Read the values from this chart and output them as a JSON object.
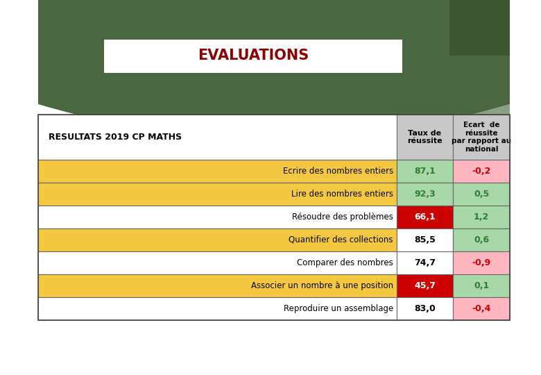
{
  "title": "EVALUATIONS",
  "subtitle": "RESULTATS 2019 CP MATHS",
  "col_headers": [
    "Taux de\nréussite",
    "Ecart  de\nréussite\npar rapport au\nnational"
  ],
  "rows": [
    {
      "label": "Ecrire des nombres entiers",
      "taux": "87,1",
      "ecart": "-0,2",
      "row_bg": "#F5C842",
      "taux_bg": "#A8D8A8",
      "ecart_bg": "#FFB6C1",
      "taux_color": "#2E7D32",
      "ecart_color": "#CC0000"
    },
    {
      "label": "Lire des nombres entiers",
      "taux": "92,3",
      "ecart": "0,5",
      "row_bg": "#F5C842",
      "taux_bg": "#A8D8A8",
      "ecart_bg": "#A8D8A8",
      "taux_color": "#2E7D32",
      "ecart_color": "#2E7D32"
    },
    {
      "label": "Résoudre des problèmes",
      "taux": "66,1",
      "ecart": "1,2",
      "row_bg": "#FFFFFF",
      "taux_bg": "#CC0000",
      "ecart_bg": "#A8D8A8",
      "taux_color": "#FFFFFF",
      "ecart_color": "#2E7D32"
    },
    {
      "label": "Quantifier des collections",
      "taux": "85,5",
      "ecart": "0,6",
      "row_bg": "#F5C842",
      "taux_bg": "#FFFFFF",
      "ecart_bg": "#A8D8A8",
      "taux_color": "#000000",
      "ecart_color": "#2E7D32"
    },
    {
      "label": "Comparer des nombres",
      "taux": "74,7",
      "ecart": "-0,9",
      "row_bg": "#FFFFFF",
      "taux_bg": "#FFFFFF",
      "ecart_bg": "#FFB6C1",
      "taux_color": "#000000",
      "ecart_color": "#CC0000"
    },
    {
      "label": "Associer un nombre à une position",
      "taux": "45,7",
      "ecart": "0,1",
      "row_bg": "#F5C842",
      "taux_bg": "#CC0000",
      "ecart_bg": "#A8D8A8",
      "taux_color": "#FFFFFF",
      "ecart_color": "#2E7D32"
    },
    {
      "label": "Reproduire un assemblage",
      "taux": "83,0",
      "ecart": "-0,4",
      "row_bg": "#FFFFFF",
      "taux_bg": "#FFFFFF",
      "ecart_bg": "#FFB6C1",
      "taux_color": "#000000",
      "ecart_color": "#CC0000"
    }
  ],
  "dark_green": "#4A6741",
  "dark_green2": "#3A5530",
  "header_bg": "#C8C8C8",
  "title_color": "#8B0000",
  "banner_color": "#4A6741",
  "fig_w": 7.8,
  "fig_h": 5.4,
  "dpi": 100
}
